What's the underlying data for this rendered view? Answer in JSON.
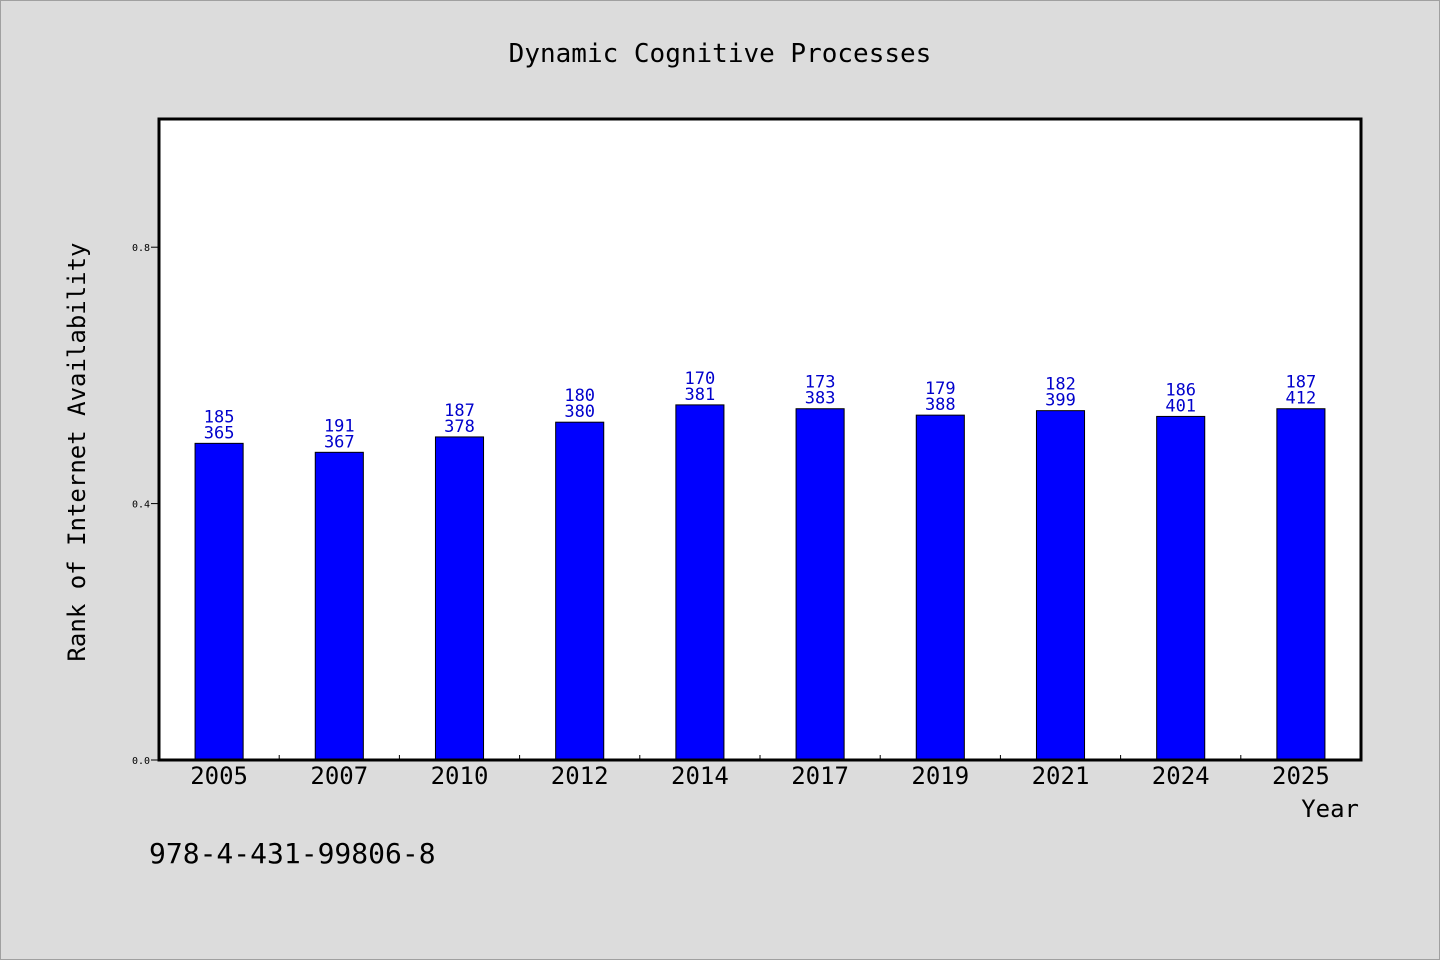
{
  "chart_data": {
    "type": "bar",
    "title": "Dynamic Cognitive Processes",
    "xlabel": "Year",
    "ylabel": "Rank of Internet Availability",
    "categories": [
      "2005",
      "2007",
      "2010",
      "2012",
      "2014",
      "2017",
      "2019",
      "2021",
      "2024",
      "2025"
    ],
    "values": [
      0.494,
      0.48,
      0.504,
      0.527,
      0.554,
      0.548,
      0.538,
      0.545,
      0.536,
      0.548
    ],
    "labels_top": [
      "185",
      "191",
      "187",
      "180",
      "170",
      "173",
      "179",
      "182",
      "186",
      "187"
    ],
    "labels_bottom": [
      "365",
      "367",
      "378",
      "380",
      "381",
      "383",
      "388",
      "399",
      "401",
      "412"
    ],
    "ylim": [
      0,
      1.0
    ],
    "yticks": [
      "0.0",
      "0.4",
      "0.8"
    ],
    "bar_color": "#0000ff",
    "label_color": "#0000cc",
    "grid": false
  },
  "footer": {
    "isbn": "978-4-431-99806-8"
  }
}
